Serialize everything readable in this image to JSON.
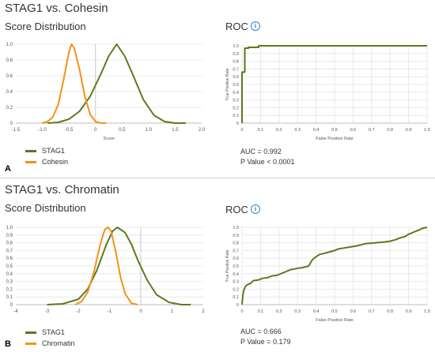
{
  "panels": [
    {
      "letter": "A",
      "title": "STAG1 vs. Cohesin",
      "dist_title": "Score Distribution",
      "roc_title": "ROC",
      "info_icon": "info-icon",
      "legend": [
        {
          "name": "STAG1",
          "color": "#5b7a1e"
        },
        {
          "name": "Cohesin",
          "color": "#f39219"
        }
      ],
      "auc_text": "AUC = 0.992",
      "p_text": "P Value < 0.0001"
    },
    {
      "letter": "B",
      "title": "STAG1 vs. Chromatin",
      "dist_title": "Score Distribution",
      "roc_title": "ROC",
      "info_icon": "info-icon",
      "legend": [
        {
          "name": "STAG1",
          "color": "#5b7a1e"
        },
        {
          "name": "Chromatin",
          "color": "#f39219"
        }
      ],
      "auc_text": "AUC = 0.666",
      "p_text": "P Value = 0.179"
    }
  ],
  "chart_data": [
    {
      "type": "line",
      "panel": "A",
      "role": "score-distribution",
      "xlabel": "Score",
      "ylabel": "",
      "xlim": [
        -1.5,
        2.0
      ],
      "ylim": [
        0,
        1.0
      ],
      "xticks": [
        "-1.5",
        "-1.0",
        "-0.5",
        "0",
        "0.5",
        "1.0",
        "1.5",
        "2.0"
      ],
      "yticks": [
        "0",
        "0.2",
        "0.4",
        "0.6",
        "0.8",
        "1.0"
      ],
      "zero_line": 0,
      "series": [
        {
          "name": "STAG1",
          "color": "#5b7a1e",
          "x": [
            -0.9,
            -0.7,
            -0.5,
            -0.3,
            -0.1,
            0.1,
            0.25,
            0.4,
            0.55,
            0.7,
            0.9,
            1.1,
            1.3,
            1.5,
            1.7
          ],
          "y": [
            0.0,
            0.01,
            0.05,
            0.15,
            0.34,
            0.62,
            0.85,
            1.0,
            0.85,
            0.62,
            0.3,
            0.1,
            0.02,
            0.0,
            0.0
          ]
        },
        {
          "name": "Cohesin",
          "color": "#f39219",
          "x": [
            -1.0,
            -0.9,
            -0.8,
            -0.7,
            -0.6,
            -0.5,
            -0.45,
            -0.4,
            -0.3,
            -0.2,
            -0.1,
            0.0,
            0.1,
            0.2
          ],
          "y": [
            0.0,
            0.02,
            0.08,
            0.24,
            0.55,
            0.9,
            1.0,
            0.95,
            0.68,
            0.34,
            0.11,
            0.02,
            0.0,
            0.0
          ]
        }
      ]
    },
    {
      "type": "line",
      "panel": "A",
      "role": "roc",
      "xlabel": "False Positive Rate",
      "ylabel": "True Positive Rate",
      "xlim": [
        0,
        1.0
      ],
      "ylim": [
        0,
        1.0
      ],
      "xticks": [
        "0",
        "0.1",
        "0.2",
        "0.3",
        "0.4",
        "0.5",
        "0.6",
        "0.7",
        "0.8",
        "0.9",
        "1.0"
      ],
      "yticks": [
        "0",
        "0.1",
        "0.2",
        "0.3",
        "0.4",
        "0.5",
        "0.6",
        "0.7",
        "0.8",
        "0.9",
        "1.0"
      ],
      "series": [
        {
          "name": "STAG1",
          "color": "#5b7a1e",
          "x": [
            0,
            0,
            0.015,
            0.015,
            0.035,
            0.035,
            0.09,
            0.09,
            1.0
          ],
          "y": [
            0,
            0.66,
            0.66,
            0.97,
            0.97,
            0.98,
            0.98,
            1.0,
            1.0
          ]
        }
      ]
    },
    {
      "type": "line",
      "panel": "B",
      "role": "score-distribution",
      "xlabel": "",
      "ylabel": "",
      "xlim": [
        -4,
        2
      ],
      "ylim": [
        0,
        1.0
      ],
      "xticks": [
        "-4",
        "-3",
        "-2",
        "-1",
        "0",
        "1",
        "2"
      ],
      "yticks": [
        "0",
        "0.1",
        "0.2",
        "0.3",
        "0.4",
        "0.5",
        "0.6",
        "0.7",
        "0.8",
        "0.9",
        "1.0"
      ],
      "zero_line": 0,
      "series": [
        {
          "name": "STAG1",
          "color": "#5b7a1e",
          "x": [
            -3.0,
            -2.5,
            -2.0,
            -1.7,
            -1.4,
            -1.1,
            -0.9,
            -0.75,
            -0.5,
            -0.3,
            -0.1,
            0.2,
            0.5,
            0.9,
            1.3,
            1.6
          ],
          "y": [
            0.0,
            0.01,
            0.07,
            0.2,
            0.45,
            0.78,
            0.95,
            1.0,
            0.93,
            0.78,
            0.58,
            0.32,
            0.13,
            0.03,
            0.0,
            0.0
          ]
        },
        {
          "name": "Chromatin",
          "color": "#f39219",
          "x": [
            -2.1,
            -1.9,
            -1.7,
            -1.5,
            -1.3,
            -1.15,
            -1.05,
            -0.95,
            -0.8,
            -0.65,
            -0.5,
            -0.3,
            -0.1
          ],
          "y": [
            0.0,
            0.04,
            0.16,
            0.42,
            0.78,
            0.97,
            1.0,
            0.95,
            0.68,
            0.36,
            0.14,
            0.02,
            0.0
          ]
        }
      ]
    },
    {
      "type": "line",
      "panel": "B",
      "role": "roc",
      "xlabel": "False Positive Rate",
      "ylabel": "True Positive Rate",
      "xlim": [
        0,
        1.0
      ],
      "ylim": [
        0,
        1.0
      ],
      "xticks": [
        "0",
        "0.1",
        "0.2",
        "0.3",
        "0.4",
        "0.5",
        "0.6",
        "0.7",
        "0.8",
        "0.9",
        "1.0"
      ],
      "yticks": [
        "0",
        "0.1",
        "0.2",
        "0.3",
        "0.4",
        "0.5",
        "0.6",
        "0.7",
        "0.8",
        "0.9",
        "1.0"
      ],
      "series": [
        {
          "name": "STAG1",
          "color": "#5b7a1e",
          "x": [
            0,
            0.005,
            0.01,
            0.02,
            0.03,
            0.05,
            0.06,
            0.09,
            0.11,
            0.14,
            0.16,
            0.19,
            0.21,
            0.24,
            0.26,
            0.3,
            0.33,
            0.36,
            0.38,
            0.4,
            0.42,
            0.44,
            0.47,
            0.5,
            0.52,
            0.57,
            0.62,
            0.67,
            0.72,
            0.77,
            0.8,
            0.83,
            0.85,
            0.88,
            0.9,
            0.92,
            0.94,
            0.96,
            0.98,
            1.0
          ],
          "y": [
            0,
            0.13,
            0.19,
            0.24,
            0.26,
            0.28,
            0.31,
            0.32,
            0.34,
            0.35,
            0.37,
            0.38,
            0.4,
            0.43,
            0.45,
            0.47,
            0.48,
            0.5,
            0.58,
            0.62,
            0.65,
            0.66,
            0.68,
            0.7,
            0.72,
            0.74,
            0.76,
            0.79,
            0.8,
            0.81,
            0.82,
            0.84,
            0.86,
            0.88,
            0.91,
            0.93,
            0.95,
            0.97,
            0.99,
            1.0
          ]
        }
      ]
    }
  ]
}
